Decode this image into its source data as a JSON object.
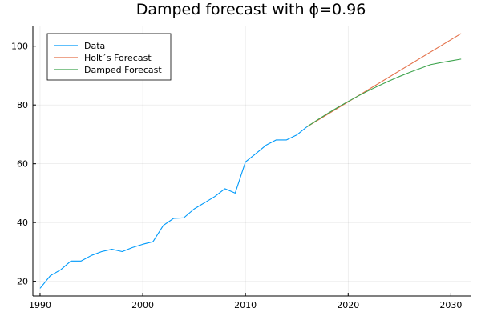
{
  "chart_data": {
    "type": "line",
    "title": "Damped forecast with ϕ=0.96",
    "xlabel": "",
    "ylabel": "",
    "xlim": [
      1989.3,
      2032.0
    ],
    "ylim": [
      15.0,
      107.0
    ],
    "xticks": [
      1990,
      2000,
      2010,
      2020,
      2030
    ],
    "yticks": [
      20,
      40,
      60,
      80,
      100
    ],
    "grid": true,
    "legend_position": "top-left",
    "series": [
      {
        "name": "Data",
        "color": "#009AFA",
        "x": [
          1990,
          1991,
          1992,
          1993,
          1994,
          1995,
          1996,
          1997,
          1998,
          1999,
          2000,
          2001,
          2002,
          2003,
          2004,
          2005,
          2006,
          2007,
          2008,
          2009,
          2010,
          2011,
          2012,
          2013,
          2014,
          2015,
          2016
        ],
        "y": [
          17.6,
          21.9,
          23.9,
          26.9,
          26.9,
          28.8,
          30.1,
          30.9,
          30.1,
          31.5,
          32.6,
          33.5,
          39.0,
          41.4,
          41.6,
          44.6,
          46.7,
          48.8,
          51.5,
          50.0,
          60.6,
          63.4,
          66.3,
          68.1,
          68.1,
          69.8,
          72.6
        ]
      },
      {
        "name": "Holt´s Forecast",
        "color": "#E36F47",
        "x": [
          2016,
          2031
        ],
        "y": [
          72.6,
          104.3
        ]
      },
      {
        "name": "Damped Forecast",
        "color": "#3EA44E",
        "x": [
          2016,
          2017,
          2018,
          2019,
          2020,
          2021,
          2022,
          2023,
          2024,
          2025,
          2026,
          2027,
          2028,
          2029,
          2030,
          2031
        ],
        "y": [
          72.6,
          74.9,
          77.1,
          79.2,
          81.2,
          83.1,
          84.9,
          86.6,
          88.2,
          89.7,
          91.1,
          92.4,
          93.7,
          94.4,
          95.0,
          95.6
        ]
      }
    ]
  }
}
